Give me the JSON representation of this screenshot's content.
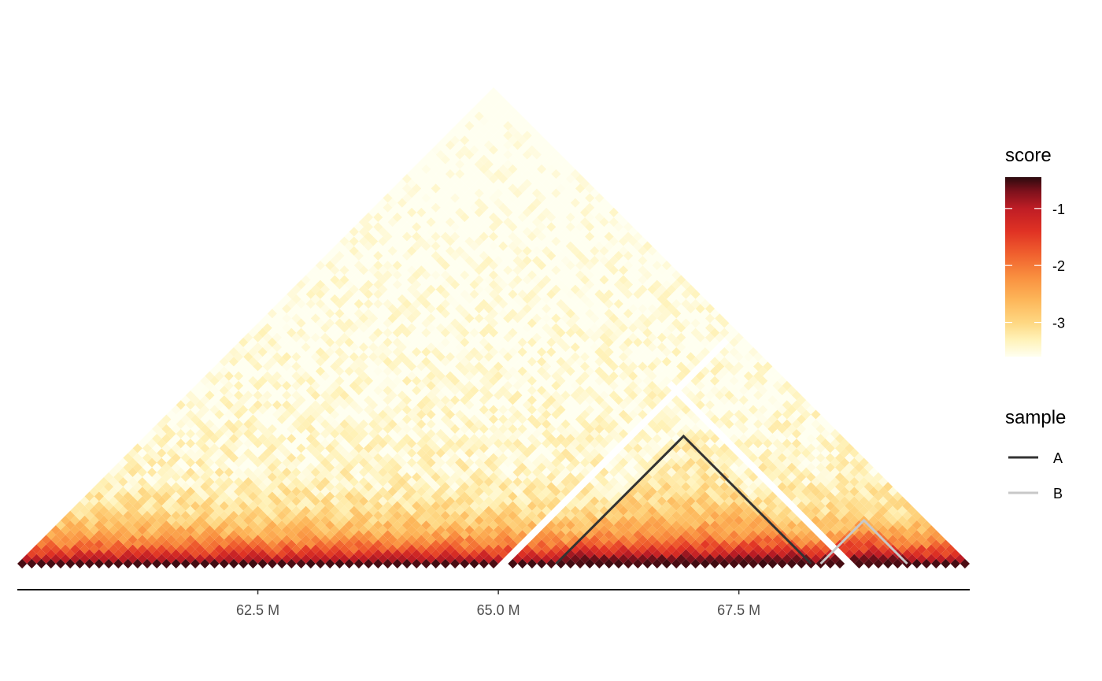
{
  "chart_data": {
    "type": "heatmap",
    "variant": "hic-triangle",
    "title": "",
    "xlabel": "",
    "ylabel": "",
    "x_unit": "Mb",
    "xlim": [
      60.0,
      69.9
    ],
    "x_ticks": [
      62.5,
      65.0,
      67.5
    ],
    "x_tick_labels": [
      "62.5 M",
      "65.0 M",
      "67.5 M"
    ],
    "bin_count": 99,
    "missing_diagonals": [
      {
        "from_mb": 65.0,
        "to_mb": 69.4
      },
      {
        "from_mb": 64.95,
        "to_mb": 68.6
      }
    ],
    "score_model": {
      "diagonal_score": -0.5,
      "far_score": -3.4,
      "noise_amplitude": 0.55
    },
    "color_scale": {
      "title": "score",
      "min": -3.6,
      "max": -0.45,
      "stops": [
        {
          "value": -3.6,
          "color": "#fffff0"
        },
        {
          "value": -3.3,
          "color": "#fff2b8"
        },
        {
          "value": -3.0,
          "color": "#fed782"
        },
        {
          "value": -2.6,
          "color": "#fdb659"
        },
        {
          "value": -2.2,
          "color": "#f98f3f"
        },
        {
          "value": -1.8,
          "color": "#f0602e"
        },
        {
          "value": -1.4,
          "color": "#e03224"
        },
        {
          "value": -1.0,
          "color": "#bf1d25"
        },
        {
          "value": -0.7,
          "color": "#7e111c"
        },
        {
          "value": -0.45,
          "color": "#2b0a0e"
        }
      ],
      "ticks": [
        -1,
        -2,
        -3
      ],
      "tick_labels": [
        "-1",
        "-2",
        "-3"
      ]
    },
    "series": [
      {
        "name": "A",
        "color": "#333333",
        "domains": [
          {
            "start": 65.6,
            "end": 68.25
          }
        ]
      },
      {
        "name": "B",
        "color": "#c8c8c8",
        "domains": [
          {
            "start": 68.35,
            "end": 69.25
          }
        ]
      }
    ],
    "legends": [
      {
        "title": "score",
        "type": "colorbar",
        "position": "right-top"
      },
      {
        "title": "sample",
        "type": "lines",
        "position": "right-middle",
        "entries": [
          "A",
          "B"
        ]
      }
    ]
  }
}
